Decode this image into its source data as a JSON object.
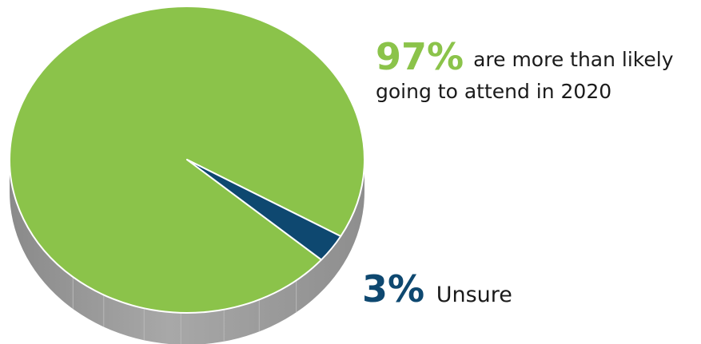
{
  "chart_data": {
    "type": "pie",
    "slices": [
      {
        "label": "are more than likely going to attend in 2020",
        "value": 97,
        "display": "97%",
        "color": "#8bc34a"
      },
      {
        "label": "Unsure",
        "value": 3,
        "display": "3%",
        "color": "#0e4870"
      }
    ],
    "title": ""
  },
  "callouts": {
    "main_pct": "97%",
    "main_line1": "are more than likely",
    "main_line2": "going to attend in 2020",
    "minor_pct": "3%",
    "minor_text": "Unsure"
  },
  "colors": {
    "green": "#8bc34a",
    "navy": "#0e4870",
    "side": "#9a9a9a"
  }
}
